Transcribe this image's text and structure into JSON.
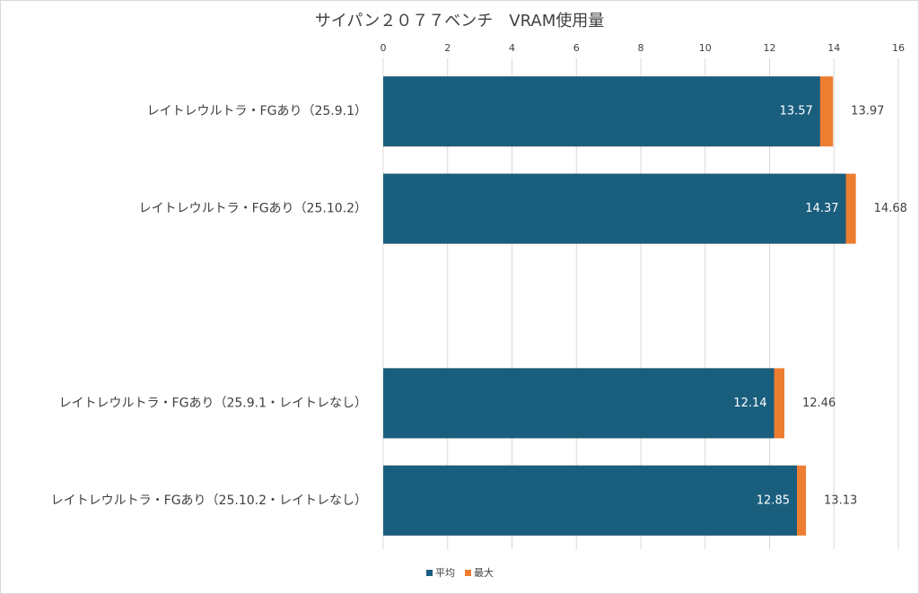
{
  "chart_data": {
    "type": "bar",
    "orientation": "horizontal",
    "overlap": true,
    "title": "サイパン２０７７ベンチ　VRAM使用量",
    "categories": [
      "レイトレウルトラ・FGあり（25.9.1）",
      "レイトレウルトラ・FGあり（25.10.2）",
      null,
      "レイトレウルトラ・FGあり（25.9.1・レイトレなし）",
      "レイトレウルトラ・FGあり（25.10.2・レイトレなし）"
    ],
    "series": [
      {
        "name": "最大",
        "color": "#ed7d31",
        "values": [
          13.97,
          14.68,
          null,
          12.46,
          13.13
        ]
      },
      {
        "name": "平均",
        "color": "#1a5e7e",
        "values": [
          13.57,
          14.37,
          null,
          12.14,
          12.85
        ]
      }
    ],
    "legend_order": [
      1,
      0
    ],
    "xlim": [
      0,
      16
    ],
    "xticks": [
      0,
      2,
      4,
      6,
      8,
      10,
      12,
      14,
      16
    ],
    "grid": true,
    "legend": "bottom"
  }
}
